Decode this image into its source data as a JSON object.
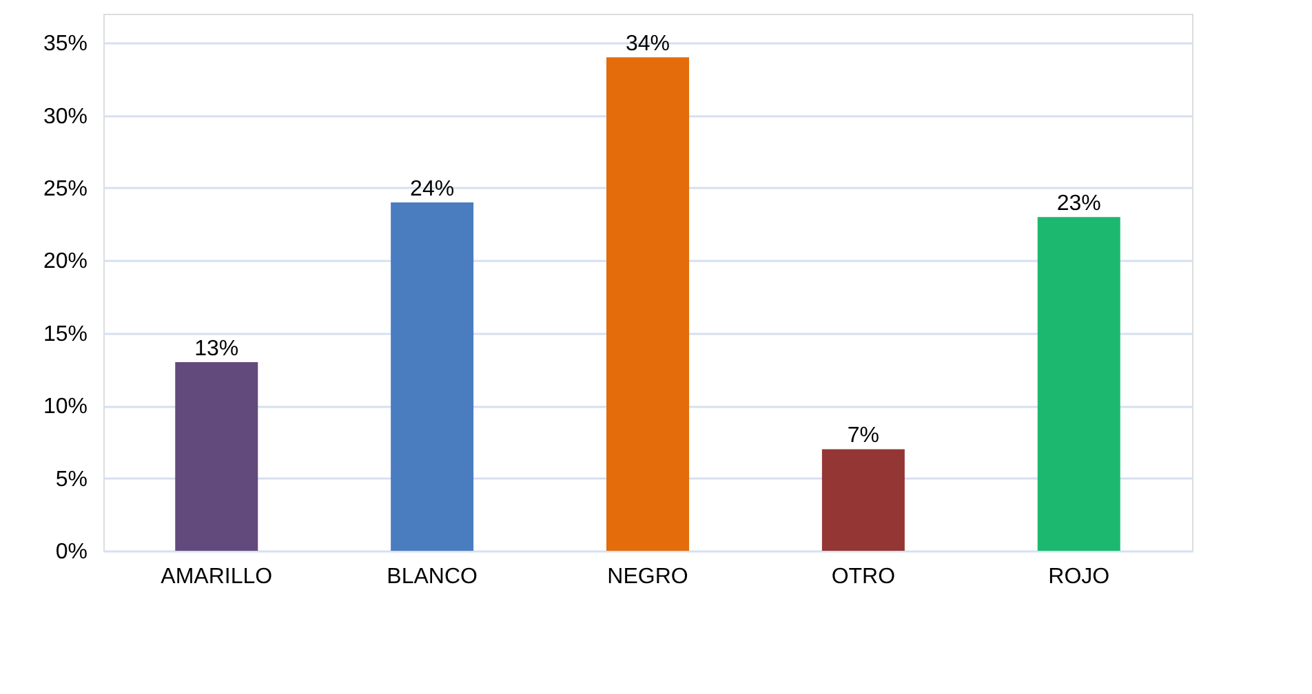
{
  "chart_data": {
    "type": "bar",
    "categories": [
      "AMARILLO",
      "BLANCO",
      "NEGRO",
      "OTRO",
      "ROJO"
    ],
    "values": [
      13,
      24,
      34,
      7,
      23
    ],
    "colors": [
      "#624a7c",
      "#4a7cc0",
      "#e46c0a",
      "#943634",
      "#1cb86f"
    ],
    "value_labels": [
      "13%",
      "24%",
      "34%",
      "7%",
      "23%"
    ],
    "ylim": [
      0,
      37
    ],
    "yticks": [
      {
        "value": 0,
        "label": "0%"
      },
      {
        "value": 5,
        "label": "5%"
      },
      {
        "value": 10,
        "label": "10%"
      },
      {
        "value": 15,
        "label": "15%"
      },
      {
        "value": 20,
        "label": "20%"
      },
      {
        "value": 25,
        "label": "25%"
      },
      {
        "value": 30,
        "label": "30%"
      },
      {
        "value": 35,
        "label": "35%"
      }
    ],
    "grid": "y"
  }
}
